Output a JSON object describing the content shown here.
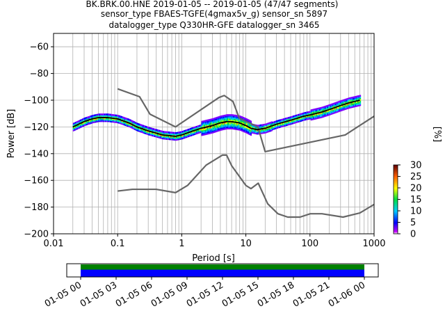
{
  "title_lines": [
    "BK.BRK.00.HNE   2019-01-05 -- 2019-01-05  (47/47 segments)",
    "sensor_type FBAES-TGFE(4gmax5v_g) sensor_sn 5897",
    "datalogger_type Q330HR-GFE datalogger_sn 3465"
  ],
  "colors": {
    "noise_models": "#666666",
    "mode_line": "#000000",
    "grid": "#b0b0b0",
    "timeline_green": "#008000",
    "timeline_blue": "#0000ff"
  },
  "chart_data": [
    {
      "type": "heatmap",
      "xlabel": "Period [s]",
      "ylabel": "Power [dB]",
      "xscale": "log",
      "xlim": [
        0.01,
        1000
      ],
      "ylim": [
        -200,
        -50
      ],
      "x_ticks": [
        0.01,
        0.1,
        1,
        10,
        100,
        1000
      ],
      "x_tick_labels": [
        "0.01",
        "0.1",
        "1",
        "10",
        "100",
        "1000"
      ],
      "y_ticks": [
        -60,
        -80,
        -100,
        -120,
        -140,
        -160,
        -180,
        -200
      ],
      "y_tick_labels": [
        "−60",
        "−80",
        "−100",
        "−120",
        "−140",
        "−160",
        "−180",
        "−200"
      ],
      "grid": true,
      "colorbar": {
        "label": "[%]",
        "range": [
          0,
          30
        ],
        "ticks": [
          0,
          5,
          10,
          15,
          20,
          25,
          30
        ],
        "tick_labels": [
          "0",
          "5",
          "10",
          "15",
          "20",
          "25",
          "30"
        ]
      },
      "ppsd_mode": {
        "period": [
          0.02,
          0.03,
          0.04,
          0.05,
          0.07,
          0.1,
          0.15,
          0.2,
          0.3,
          0.5,
          0.8,
          1.0,
          1.5,
          2.0,
          3.0,
          4.0,
          5.0,
          6.0,
          8.0,
          10.0,
          12.0,
          15.0,
          20.0,
          30.0,
          50.0,
          80.0,
          100.0,
          150.0,
          200.0,
          300.0,
          400.0,
          600.0
        ],
        "power": [
          -120,
          -116,
          -114,
          -113,
          -113,
          -114,
          -117,
          -120,
          -123,
          -126,
          -127,
          -126,
          -123,
          -121,
          -119,
          -117,
          -116,
          -116,
          -117,
          -119,
          -121,
          -122,
          -121,
          -118,
          -115,
          -112,
          -111,
          -109,
          -107,
          -104,
          -102,
          -100
        ]
      },
      "noise_model_high": {
        "period": [
          0.1,
          0.22,
          0.32,
          0.8,
          3.8,
          4.6,
          6.3,
          7.9,
          15.4,
          20.0,
          354.8,
          1000.0
        ],
        "power": [
          -91.5,
          -97.4,
          -110.5,
          -120.0,
          -98.0,
          -96.5,
          -101.0,
          -113.5,
          -120.0,
          -138.5,
          -126.0,
          -112.0
        ]
      },
      "noise_model_low": {
        "period": [
          0.1,
          0.17,
          0.4,
          0.8,
          1.24,
          2.4,
          4.3,
          5.0,
          6.0,
          10.0,
          12.0,
          15.6,
          21.9,
          31.6,
          45.0,
          70.0,
          101.0,
          154.0,
          328.0,
          600.0,
          1000.0
        ],
        "power": [
          -168.0,
          -166.7,
          -166.7,
          -169.2,
          -163.7,
          -148.6,
          -141.1,
          -141.1,
          -149.0,
          -163.8,
          -166.2,
          -162.1,
          -177.5,
          -185.0,
          -187.5,
          -187.5,
          -185.0,
          -185.0,
          -187.5,
          -184.4,
          -178.0
        ]
      }
    },
    {
      "type": "timeline",
      "tick_labels": [
        "01-05 00",
        "01-05 03",
        "01-05 06",
        "01-05 09",
        "01-05 12",
        "01-05 15",
        "01-05 18",
        "01-05 21",
        "01-06 00"
      ],
      "span_hours": [
        0,
        24
      ],
      "bars": [
        {
          "name": "",
          "start_hour": 0,
          "end_hour": 24,
          "color": "#008000"
        },
        {
          "name": "",
          "start_hour": 0,
          "end_hour": 24,
          "color": "#0000ff"
        }
      ]
    }
  ]
}
